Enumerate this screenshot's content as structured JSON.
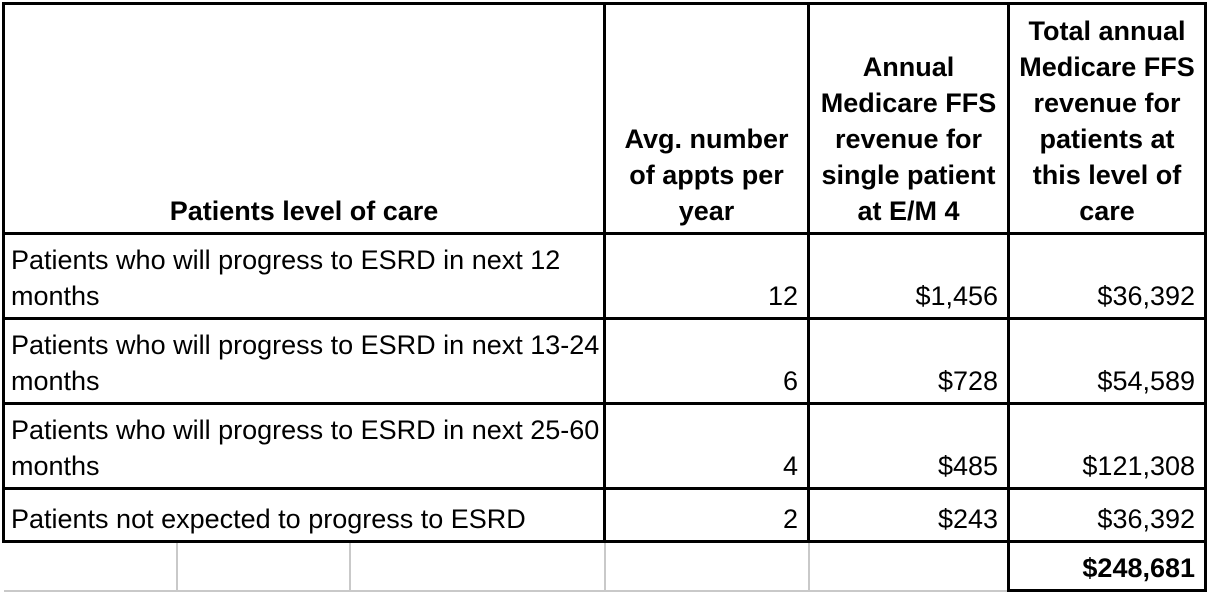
{
  "table": {
    "header": {
      "care": "Patients level of care",
      "appts_lines": [
        "Avg. number",
        "of appts per",
        "year"
      ],
      "single_lines": [
        "Annual",
        "Medicare FFS",
        "revenue for",
        "single patient",
        "at E/M 4"
      ],
      "total_lines": [
        "Total annual",
        "Medicare FFS",
        "revenue for",
        "patients at",
        "this level of",
        "care"
      ]
    },
    "rows": [
      {
        "care_lines": [
          "Patients who will progress to ESRD in next 12",
          "months"
        ],
        "appts": "12",
        "single_revenue": "$1,456",
        "total_revenue": "$36,392"
      },
      {
        "care_lines": [
          "Patients who will progress to ESRD in next 13-24",
          "months"
        ],
        "appts": "6",
        "single_revenue": "$728",
        "total_revenue": "$54,589"
      },
      {
        "care_lines": [
          "Patients who will progress to ESRD in next 25-60",
          "months"
        ],
        "appts": "4",
        "single_revenue": "$485",
        "total_revenue": "$121,308"
      },
      {
        "care_lines": [
          "Patients not expected to progress to ESRD"
        ],
        "appts": "2",
        "single_revenue": "$243",
        "total_revenue": "$36,392"
      }
    ],
    "grand_total": "$248,681"
  },
  "colors": {
    "text": "#000000",
    "table_border": "#000000",
    "gridline": "#c9c9c9",
    "background": "#ffffff"
  },
  "chart_data": {
    "type": "table",
    "columns": [
      "Patients level of care",
      "Avg. number of appts per year",
      "Annual Medicare FFS revenue for single patient at E/M 4",
      "Total annual Medicare FFS revenue for patients at this level of care"
    ],
    "rows": [
      [
        "Patients who will progress to ESRD in next 12 months",
        12,
        "$1,456",
        "$36,392"
      ],
      [
        "Patients who will progress to ESRD in next 13-24 months",
        6,
        "$728",
        "$54,589"
      ],
      [
        "Patients who will progress to ESRD in next 25-60 months",
        4,
        "$485",
        "$121,308"
      ],
      [
        "Patients not expected to progress to ESRD",
        2,
        "$243",
        "$36,392"
      ]
    ],
    "grand_total": "$248,681"
  }
}
